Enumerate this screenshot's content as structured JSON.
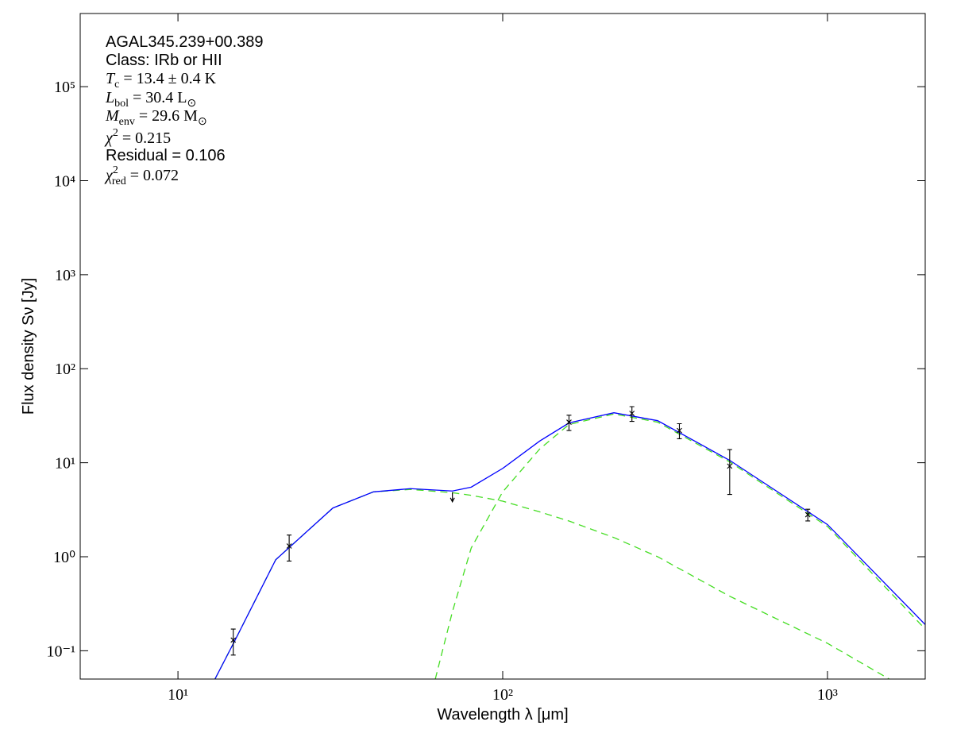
{
  "chart_data": {
    "type": "sed",
    "xlabel": "Wavelength λ [μm]",
    "ylabel": "Flux density Sν [Jy]",
    "xlog": true,
    "ylog": true,
    "xlim": [
      5,
      2000
    ],
    "ylim": [
      0.05,
      600000
    ],
    "xticks": [
      {
        "value": 10,
        "label": "10¹"
      },
      {
        "value": 100,
        "label": "10²"
      },
      {
        "value": 1000,
        "label": "10³"
      }
    ],
    "yticks": [
      {
        "value": 0.1,
        "label": "10⁻¹"
      },
      {
        "value": 1,
        "label": "10⁰"
      },
      {
        "value": 10,
        "label": "10¹"
      },
      {
        "value": 100,
        "label": "10²"
      },
      {
        "value": 1000,
        "label": "10³"
      },
      {
        "value": 10000,
        "label": "10⁴"
      },
      {
        "value": 100000,
        "label": "10⁵"
      }
    ],
    "annotations": [
      [
        {
          "text": "AGAL345.239+00.389"
        }
      ],
      [
        {
          "text": "Class: IRb or HII"
        }
      ],
      [
        {
          "math": "T"
        },
        {
          "sub": "c"
        },
        {
          "text": " = 13.4 ± 0.4 K"
        }
      ],
      [
        {
          "math": "L"
        },
        {
          "sub": "bol"
        },
        {
          "text": " = 30.4 L"
        },
        {
          "sub": "⊙"
        }
      ],
      [
        {
          "math": "M"
        },
        {
          "sub": "env"
        },
        {
          "text": " = 29.6 M"
        },
        {
          "sub": "⊙"
        }
      ],
      [
        {
          "math": "χ"
        },
        {
          "sup": "2"
        },
        {
          "text": " = 0.215"
        }
      ],
      [
        {
          "text": "Residual = 0.106"
        }
      ],
      [
        {
          "math": "χ"
        },
        {
          "sup": "2"
        },
        {
          "sub": "red"
        },
        {
          "text": " = 0.072"
        }
      ]
    ],
    "points": {
      "color": "#000000",
      "x": [
        14.8,
        22,
        70,
        160,
        250,
        350,
        500,
        870
      ],
      "values": [
        0.13,
        1.3,
        4.4,
        27,
        33.5,
        22,
        9.2,
        2.8
      ],
      "errors": [
        0.04,
        0.4,
        null,
        5,
        6,
        4,
        4.6,
        0.4
      ],
      "upper_limit": [
        false,
        false,
        true,
        false,
        false,
        false,
        false,
        false
      ]
    },
    "series": [
      {
        "color": "#44dd22",
        "dashed": true,
        "x": [
          13,
          15,
          20,
          30,
          40,
          52,
          70,
          80,
          100,
          130,
          160,
          220,
          300,
          500,
          1000,
          2000
        ],
        "values": [
          0.05,
          0.13,
          0.93,
          3.3,
          4.9,
          5.2,
          4.8,
          4.5,
          3.9,
          3.0,
          2.4,
          1.6,
          1.0,
          0.38,
          0.12,
          0.03
        ]
      },
      {
        "color": "#44dd22",
        "dashed": true,
        "x": [
          62,
          70,
          80,
          100,
          130,
          160,
          220,
          300,
          500,
          1000,
          2000
        ],
        "values": [
          0.05,
          0.26,
          1.24,
          4.9,
          14,
          25.5,
          33,
          27,
          10.2,
          2.1,
          0.17
        ]
      },
      {
        "color": "#0000ff",
        "dashed": false,
        "x": [
          13,
          15,
          20,
          30,
          40,
          52,
          70,
          80,
          100,
          130,
          160,
          220,
          300,
          500,
          1000,
          2000
        ],
        "values": [
          0.05,
          0.13,
          0.93,
          3.3,
          4.9,
          5.3,
          5.0,
          5.5,
          8.7,
          17,
          26.5,
          34,
          28,
          10.6,
          2.2,
          0.19
        ]
      }
    ]
  }
}
